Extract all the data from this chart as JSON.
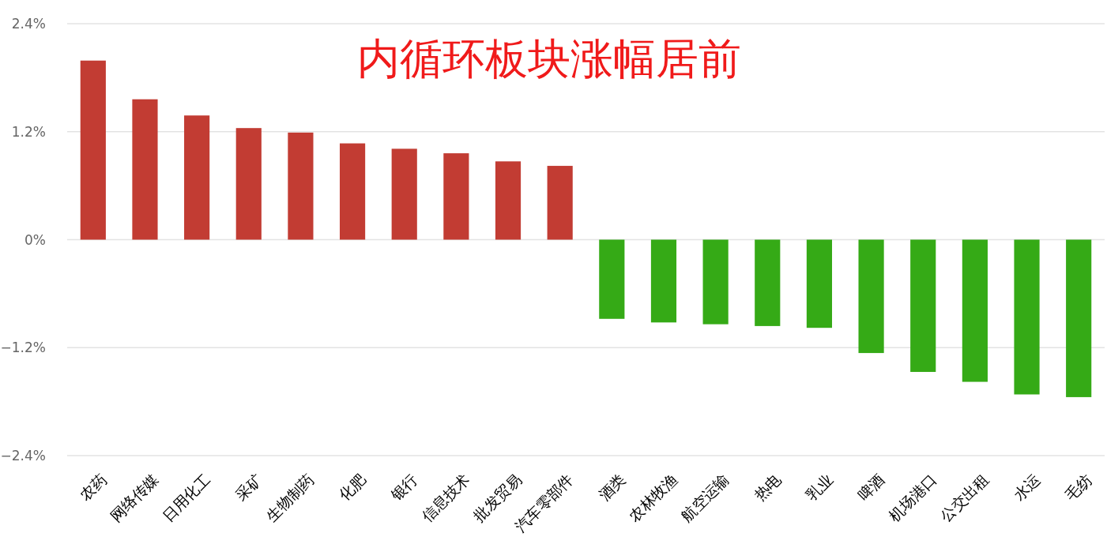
{
  "chart_data": {
    "type": "bar",
    "title": "内循环板块涨幅居前",
    "categories": [
      "农药",
      "网络传媒",
      "日用化工",
      "采矿",
      "生物制药",
      "化肥",
      "银行",
      "信息技术",
      "批发贸易",
      "汽车零部件",
      "酒类",
      "农林牧渔",
      "航空运输",
      "热电",
      "乳业",
      "啤酒",
      "机场港口",
      "公交出租",
      "水运",
      "毛纺"
    ],
    "values": [
      1.99,
      1.56,
      1.38,
      1.24,
      1.19,
      1.07,
      1.01,
      0.96,
      0.87,
      0.82,
      -0.88,
      -0.92,
      -0.94,
      -0.96,
      -0.98,
      -1.26,
      -1.47,
      -1.58,
      -1.72,
      -1.75
    ],
    "colors": [
      "#c23c33",
      "#c23c33",
      "#c23c33",
      "#c23c33",
      "#c23c33",
      "#c23c33",
      "#c23c33",
      "#c23c33",
      "#c23c33",
      "#c23c33",
      "#35aa16",
      "#35aa16",
      "#35aa16",
      "#35aa16",
      "#35aa16",
      "#35aa16",
      "#35aa16",
      "#35aa16",
      "#35aa16",
      "#35aa16"
    ],
    "ylim": [
      -2.4,
      2.4
    ],
    "yticks": [
      {
        "value": 2.4,
        "label": "2.4%"
      },
      {
        "value": 1.2,
        "label": "1.2%"
      },
      {
        "value": 0,
        "label": "0%"
      },
      {
        "value": -1.2,
        "label": "−1.2%"
      },
      {
        "value": -2.4,
        "label": "−2.4%"
      }
    ],
    "grid": "y"
  }
}
